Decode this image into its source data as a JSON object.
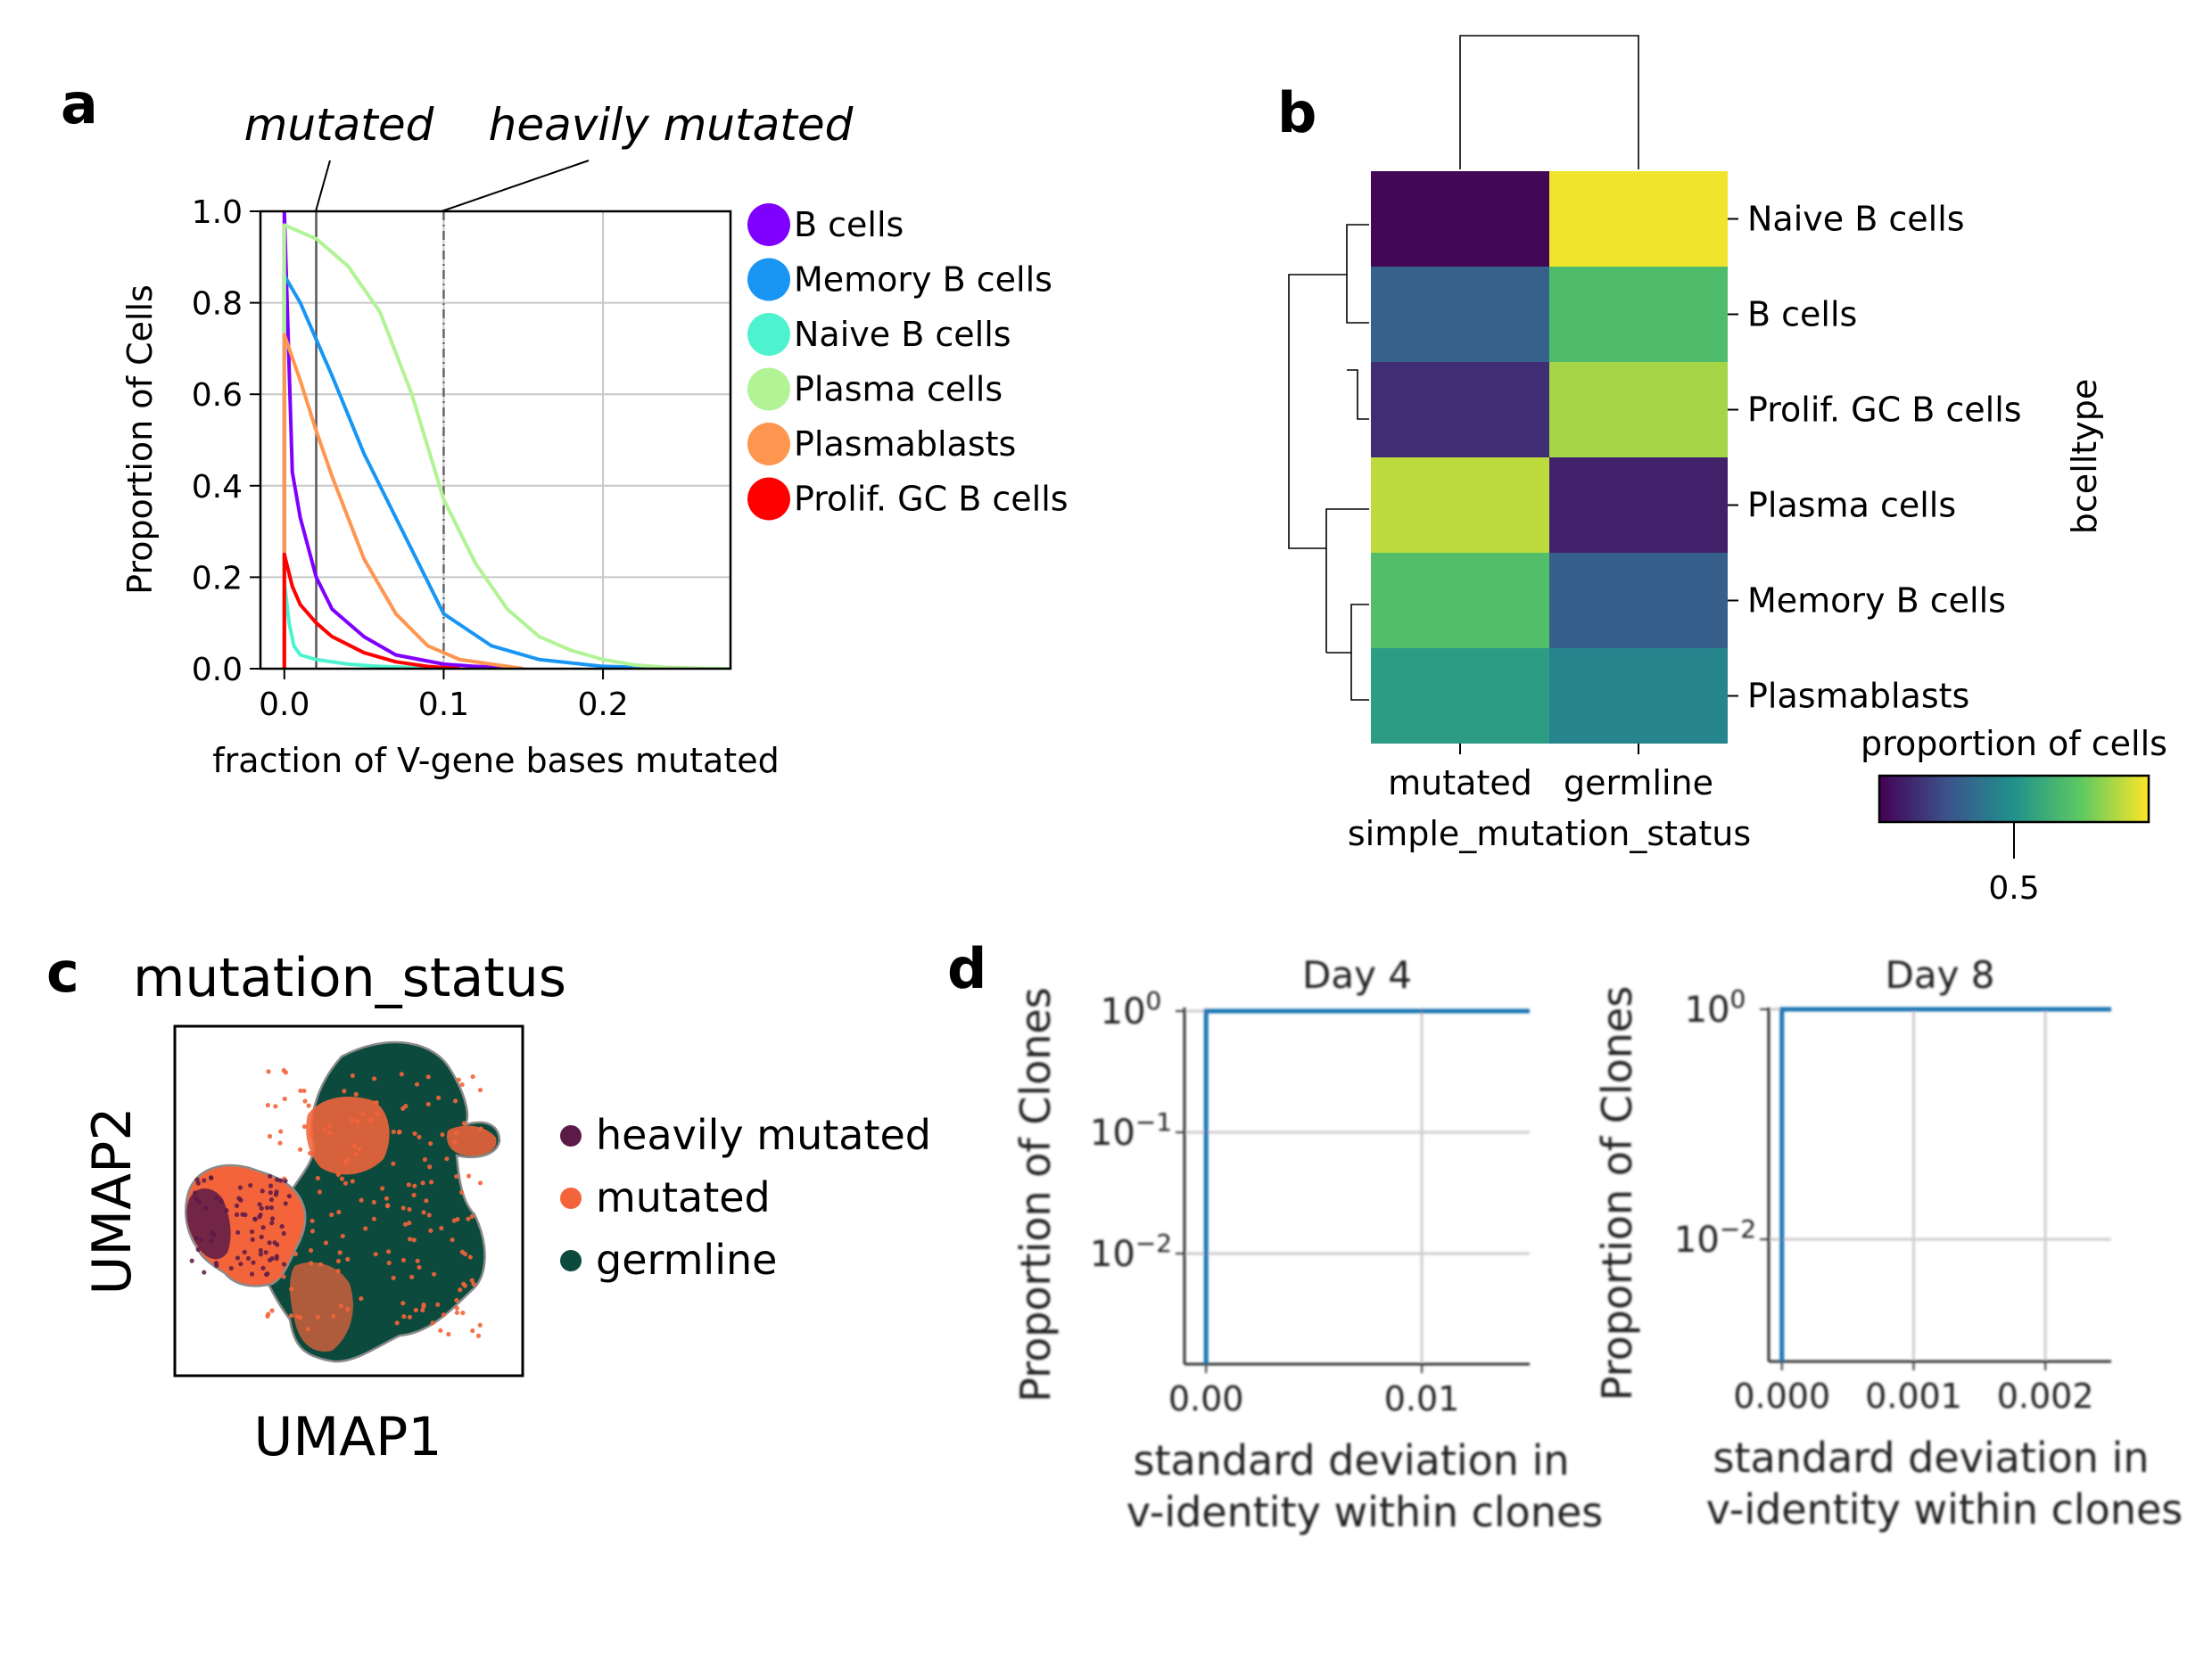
{
  "panels": {
    "a": {
      "letter": "a"
    },
    "b": {
      "letter": "b"
    },
    "c": {
      "letter": "c"
    },
    "d": {
      "letter": "d"
    }
  },
  "chart_data": [
    {
      "id": "a",
      "type": "line",
      "title": "",
      "xlabel": "fraction of V-gene bases mutated",
      "ylabel": "Proportion of Cells",
      "xlim": [
        -0.015,
        0.28
      ],
      "ylim": [
        0,
        1.0
      ],
      "x_ticks": [
        0.0,
        0.1,
        0.2
      ],
      "x_tick_labels": [
        "0.0",
        "0.1",
        "0.2"
      ],
      "y_ticks": [
        0.0,
        0.2,
        0.4,
        0.6,
        0.8,
        1.0
      ],
      "y_tick_labels": [
        "0.0",
        "0.2",
        "0.4",
        "0.6",
        "0.8",
        "1.0"
      ],
      "grid": true,
      "legend_position": "right",
      "thresholds": [
        {
          "label": "mutated",
          "x": 0.02
        },
        {
          "label": "heavily mutated",
          "x": 0.1
        }
      ],
      "series": [
        {
          "name": "B cells",
          "color": "#8000ff",
          "x": [
            0,
            0.005,
            0.01,
            0.02,
            0.03,
            0.05,
            0.07,
            0.1,
            0.12,
            0.15
          ],
          "y": [
            1.0,
            0.43,
            0.33,
            0.2,
            0.13,
            0.07,
            0.03,
            0.01,
            0.005,
            0.0
          ]
        },
        {
          "name": "Memory B cells",
          "color": "#1996f3",
          "x": [
            0,
            0.005,
            0.01,
            0.02,
            0.03,
            0.05,
            0.07,
            0.1,
            0.13,
            0.16,
            0.2,
            0.25
          ],
          "y": [
            0.86,
            0.83,
            0.8,
            0.72,
            0.64,
            0.47,
            0.33,
            0.12,
            0.05,
            0.02,
            0.005,
            0.0
          ]
        },
        {
          "name": "Naive B cells",
          "color": "#4df3ce",
          "x": [
            0,
            0.003,
            0.006,
            0.01,
            0.02,
            0.04,
            0.06,
            0.1
          ],
          "y": [
            0.19,
            0.1,
            0.05,
            0.03,
            0.02,
            0.01,
            0.005,
            0.0
          ]
        },
        {
          "name": "Plasma cells",
          "color": "#b2f396",
          "x": [
            0,
            0.02,
            0.04,
            0.06,
            0.08,
            0.1,
            0.12,
            0.14,
            0.16,
            0.18,
            0.2,
            0.22,
            0.24,
            0.26,
            0.28
          ],
          "y": [
            0.97,
            0.94,
            0.88,
            0.78,
            0.6,
            0.37,
            0.23,
            0.13,
            0.07,
            0.04,
            0.02,
            0.008,
            0.003,
            0.001,
            0.0
          ]
        },
        {
          "name": "Plasmablasts",
          "color": "#ff964f",
          "x": [
            0,
            0.005,
            0.01,
            0.02,
            0.03,
            0.05,
            0.07,
            0.09,
            0.11,
            0.13,
            0.15
          ],
          "y": [
            0.73,
            0.68,
            0.63,
            0.52,
            0.42,
            0.24,
            0.12,
            0.05,
            0.02,
            0.01,
            0.0
          ]
        },
        {
          "name": "Prolif. GC B cells",
          "color": "#ff0000",
          "x": [
            0,
            0.005,
            0.01,
            0.02,
            0.03,
            0.05,
            0.07,
            0.09,
            0.11
          ],
          "y": [
            0.25,
            0.18,
            0.14,
            0.1,
            0.07,
            0.035,
            0.015,
            0.005,
            0.0
          ]
        }
      ]
    },
    {
      "id": "b",
      "type": "heatmap",
      "title": "",
      "xlabel": "simple_mutation_status",
      "ylabel": "bcelltype",
      "columns": [
        "mutated",
        "germline"
      ],
      "rows": [
        "Naive B cells",
        "B cells",
        "Prolif. GC B cells",
        "Plasma cells",
        "Memory B cells",
        "Plasmablasts"
      ],
      "values": [
        [
          0.02,
          0.98
        ],
        [
          0.31,
          0.69
        ],
        [
          0.14,
          0.86
        ],
        [
          0.9,
          0.1
        ],
        [
          0.7,
          0.3
        ],
        [
          0.55,
          0.45
        ]
      ],
      "colormap": "viridis",
      "colorbar_label": "proportion of cells",
      "colorbar_tick_labels": [
        "0.5"
      ],
      "colorbar_ticks": [
        0.5
      ],
      "colorbar_range": [
        0.0,
        1.0
      ],
      "dendrogram": "rows and columns"
    },
    {
      "id": "c",
      "type": "scatter",
      "title": "mutation_status",
      "xlabel": "UMAP1",
      "ylabel": "UMAP2",
      "legend_position": "right",
      "categories": [
        {
          "name": "heavily mutated",
          "color": "#5c1a48"
        },
        {
          "name": "mutated",
          "color": "#f4643a"
        },
        {
          "name": "germline",
          "color": "#0b4a3c"
        }
      ]
    },
    {
      "id": "d1",
      "type": "line",
      "title": "Day 4",
      "xlabel": "standard deviation in v-identity within clones",
      "xlabel_lines": [
        "standard deviation in",
        "v-identity within clones"
      ],
      "ylabel": "Proportion of Clones",
      "y_scale": "log",
      "xlim": [
        -0.001,
        0.015
      ],
      "x_ticks": [
        0.0,
        0.01
      ],
      "x_tick_labels": [
        "0.00",
        "0.01"
      ],
      "y_tick_labels": [
        {
          "base": "10",
          "exp": "0"
        },
        {
          "base": "10",
          "exp": "−1"
        },
        {
          "base": "10",
          "exp": "−2"
        }
      ],
      "grid": true,
      "series": [
        {
          "color": "#1f77b4",
          "x": [
            0,
            0.0,
            0.015
          ],
          "y": [
            0.001,
            1.0,
            1.0
          ]
        }
      ]
    },
    {
      "id": "d2",
      "type": "line",
      "title": "Day 8",
      "xlabel": "standard deviation in v-identity within clones",
      "xlabel_lines": [
        "standard deviation in",
        "v-identity within clones"
      ],
      "ylabel": "Proportion of Clones",
      "y_scale": "log",
      "xlim": [
        -0.0001,
        0.0025
      ],
      "x_ticks": [
        0.0,
        0.001,
        0.002
      ],
      "x_tick_labels": [
        "0.000",
        "0.001",
        "0.002"
      ],
      "y_tick_labels": [
        {
          "base": "10",
          "exp": "0"
        },
        {
          "base": "10",
          "exp": "−2"
        }
      ],
      "grid": true,
      "series": [
        {
          "color": "#1f77b4",
          "x": [
            0,
            0.0,
            0.0025
          ],
          "y": [
            0.001,
            1.0,
            1.0
          ]
        }
      ]
    }
  ]
}
